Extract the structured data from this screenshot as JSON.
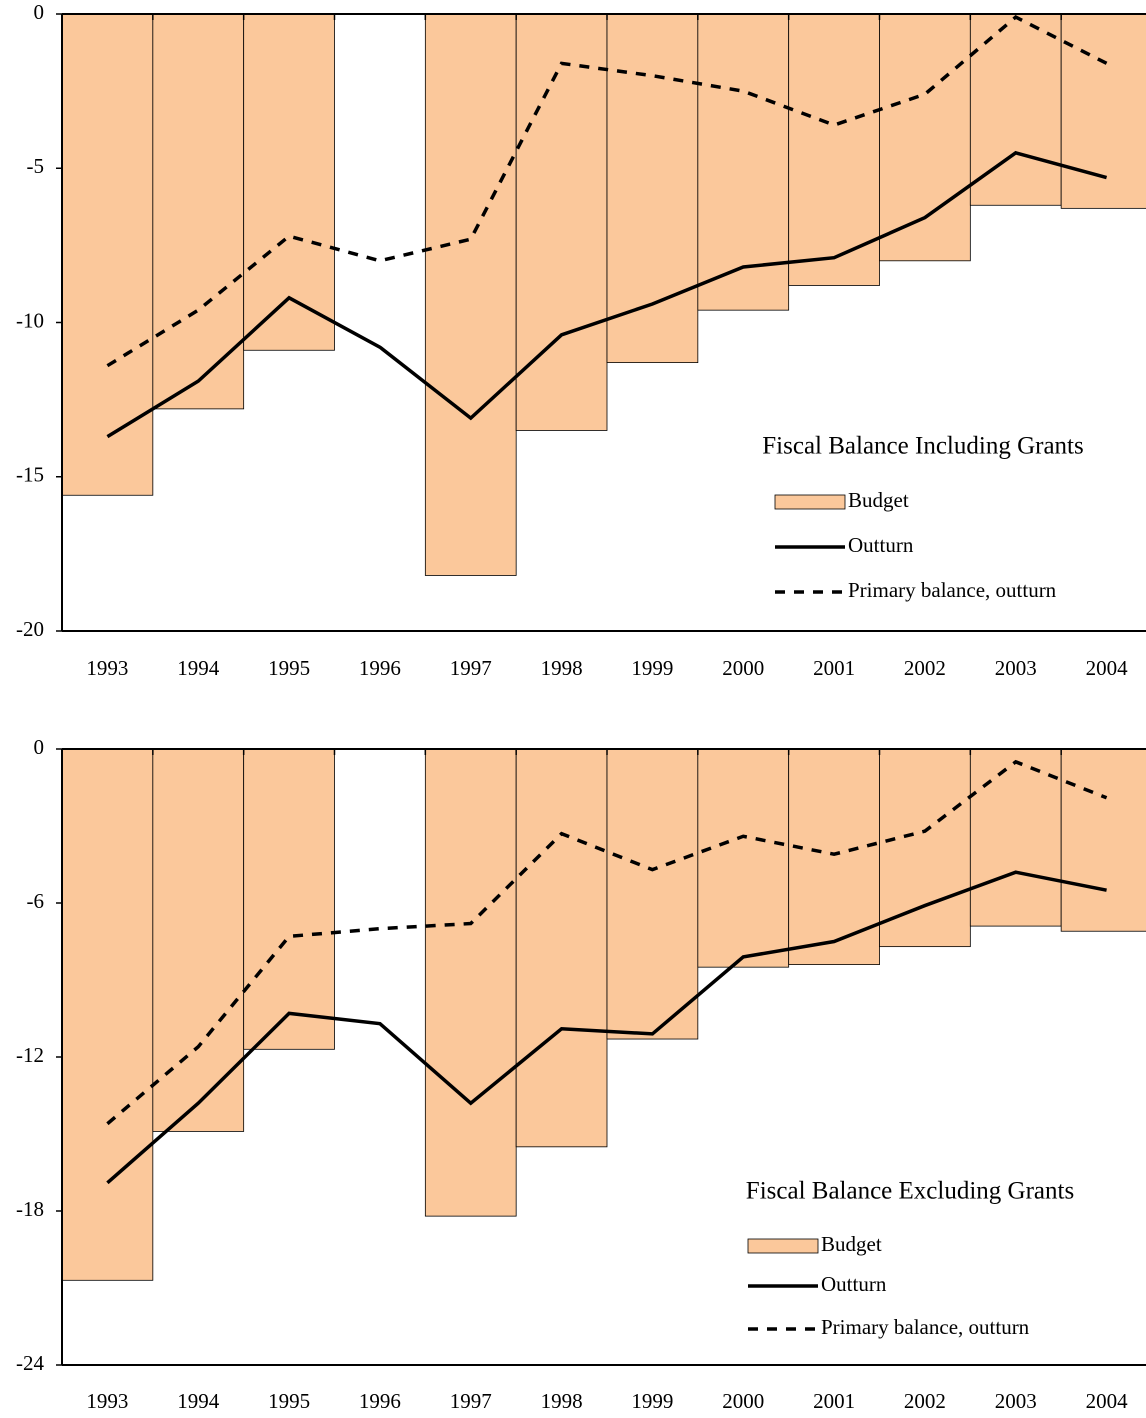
{
  "chart_data": [
    {
      "type": "bar",
      "title": "Fiscal Balance Including Grants",
      "categories": [
        "1993",
        "1994",
        "1995",
        "1996",
        "1997",
        "1998",
        "1999",
        "2000",
        "2001",
        "2002",
        "2003",
        "2004"
      ],
      "series": [
        {
          "name": "Budget",
          "type": "bar",
          "color": "#fbc89b",
          "values": [
            -15.6,
            -12.8,
            -10.9,
            null,
            -18.2,
            -13.5,
            -11.3,
            -9.6,
            -8.8,
            -8.0,
            -6.2,
            -6.3
          ]
        },
        {
          "name": "Outturn",
          "type": "line",
          "color": "#000000",
          "dash": false,
          "values": [
            -13.7,
            -11.9,
            -9.2,
            -10.8,
            -13.1,
            -10.4,
            -9.4,
            -8.2,
            -7.9,
            -6.6,
            -4.5,
            -5.3
          ]
        },
        {
          "name": "Primary balance, outturn",
          "type": "line",
          "color": "#000000",
          "dash": true,
          "values": [
            -11.4,
            -9.6,
            -7.2,
            -8.0,
            -7.3,
            -1.6,
            -2.0,
            -2.5,
            -3.6,
            -2.6,
            -0.1,
            -1.6
          ]
        }
      ],
      "ylim": [
        -20,
        0
      ],
      "yticks": [
        0,
        -5,
        -10,
        -15,
        -20
      ]
    },
    {
      "type": "bar",
      "title": "Fiscal Balance Excluding Grants",
      "categories": [
        "1993",
        "1994",
        "1995",
        "1996",
        "1997",
        "1998",
        "1999",
        "2000",
        "2001",
        "2002",
        "2003",
        "2004"
      ],
      "series": [
        {
          "name": "Budget",
          "type": "bar",
          "color": "#fbc89b",
          "values": [
            -20.7,
            -14.9,
            -11.7,
            null,
            -18.2,
            -15.5,
            -11.3,
            -8.5,
            -8.4,
            -7.7,
            -6.9,
            -7.1
          ]
        },
        {
          "name": "Outturn",
          "type": "line",
          "color": "#000000",
          "dash": false,
          "values": [
            -16.9,
            -13.8,
            -10.3,
            -10.7,
            -13.8,
            -10.9,
            -11.1,
            -8.1,
            -7.5,
            -6.1,
            -4.8,
            -5.5
          ]
        },
        {
          "name": "Primary balance, outturn",
          "type": "line",
          "color": "#000000",
          "dash": true,
          "values": [
            -14.6,
            -11.6,
            -7.3,
            -7.0,
            -6.8,
            -3.3,
            -4.7,
            -3.4,
            -4.1,
            -3.2,
            -0.5,
            -1.9
          ]
        }
      ],
      "ylim": [
        -24,
        0
      ],
      "yticks": [
        0,
        -6,
        -12,
        -18,
        -24
      ]
    }
  ]
}
